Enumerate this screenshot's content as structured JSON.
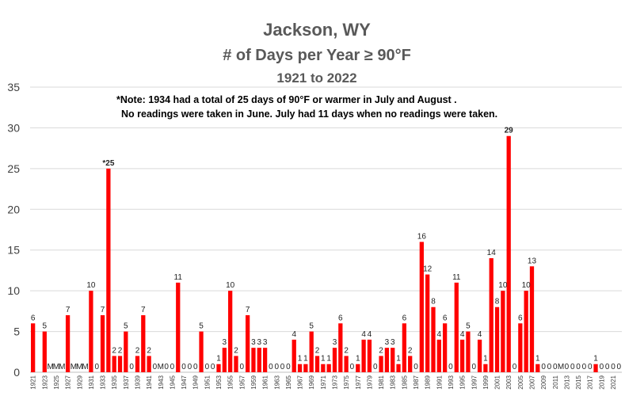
{
  "chart_data": {
    "type": "bar",
    "title": "Jackson, WY",
    "subtitle": "# of Days per Year ≥ 90°F",
    "period": "1921 to 2022",
    "note_line1": "*Note:  1934 had a total of 25 days of 90°F or warmer in July and August .",
    "note_line2": "No readings were taken in June. July had 11 days when no readings were taken.",
    "xlabel": "",
    "ylabel": "",
    "ylim": [
      0,
      35
    ],
    "yticks": [
      0,
      5,
      10,
      15,
      20,
      25,
      30,
      35
    ],
    "grid": true,
    "legend": "none",
    "bar_color": "#ff0000",
    "grid_color": "#d9d9d9",
    "first_year": 1921,
    "years": [
      "1921",
      "1922",
      "1923",
      "1924",
      "1925",
      "1926",
      "1927",
      "1928",
      "1929",
      "1930",
      "1931",
      "1932",
      "1933",
      "1934",
      "1935",
      "1936",
      "1937",
      "1938",
      "1939",
      "1940",
      "1941",
      "1942",
      "1943",
      "1944",
      "1945",
      "1946",
      "1947",
      "1948",
      "1949",
      "1950",
      "1951",
      "1952",
      "1953",
      "1954",
      "1955",
      "1956",
      "1957",
      "1958",
      "1959",
      "1960",
      "1961",
      "1962",
      "1963",
      "1964",
      "1965",
      "1966",
      "1967",
      "1968",
      "1969",
      "1970",
      "1971",
      "1972",
      "1973",
      "1974",
      "1975",
      "1976",
      "1977",
      "1978",
      "1979",
      "1980",
      "1981",
      "1982",
      "1983",
      "1984",
      "1985",
      "1986",
      "1987",
      "1988",
      "1989",
      "1990",
      "1991",
      "1992",
      "1993",
      "1994",
      "1995",
      "1996",
      "1997",
      "1998",
      "1999",
      "2000",
      "2001",
      "2002",
      "2003",
      "2004",
      "2005",
      "2006",
      "2007",
      "2008",
      "2009",
      "2010",
      "2011",
      "2012",
      "2013",
      "2014",
      "2015",
      "2016",
      "2017",
      "2018",
      "2019",
      "2020",
      "2021",
      "2022"
    ],
    "values": [
      6,
      0,
      5,
      0,
      0,
      0,
      7,
      0,
      0,
      0,
      10,
      0,
      7,
      25,
      2,
      2,
      5,
      0,
      2,
      7,
      2,
      0,
      0,
      0,
      0,
      11,
      0,
      0,
      0,
      5,
      0,
      0,
      1,
      3,
      10,
      2,
      0,
      7,
      3,
      3,
      3,
      0,
      0,
      0,
      0,
      4,
      1,
      1,
      5,
      2,
      1,
      1,
      3,
      6,
      2,
      0,
      1,
      4,
      4,
      0,
      2,
      3,
      3,
      1,
      6,
      2,
      0,
      16,
      12,
      8,
      4,
      6,
      0,
      11,
      4,
      5,
      0,
      4,
      1,
      14,
      8,
      10,
      29,
      0,
      6,
      10,
      13,
      1,
      0,
      0,
      0,
      0,
      0,
      0,
      0,
      0,
      0,
      1,
      0,
      0,
      0,
      0
    ],
    "labels": [
      "6",
      "",
      "5",
      "M",
      "M",
      "M",
      "7",
      "M",
      "M",
      "M",
      "10",
      "0",
      "7",
      "*25",
      "2",
      "2",
      "5",
      "0",
      "2",
      "7",
      "2",
      "0",
      "M",
      "0",
      "0",
      "11",
      "0",
      "0",
      "0",
      "5",
      "0",
      "0",
      "1",
      "3",
      "10",
      "2",
      "0",
      "7",
      "3",
      "3",
      "3",
      "0",
      "0",
      "0",
      "0",
      "4",
      "1",
      "1",
      "5",
      "2",
      "1",
      "1",
      "3",
      "6",
      "2",
      "0",
      "1",
      "4",
      "4",
      "0",
      "2",
      "3",
      "3",
      "1",
      "6",
      "2",
      "0",
      "16",
      "12",
      "8",
      "4",
      "6",
      "0",
      "11",
      "4",
      "5",
      "0",
      "4",
      "1",
      "14",
      "8",
      "10",
      "29",
      "0",
      "6",
      "10",
      "13",
      "1",
      "0",
      "0",
      "0",
      "M",
      "0",
      "0",
      "0",
      "0",
      "0",
      "1",
      "0",
      "0",
      "0",
      "0"
    ],
    "xtick_labels": [
      "1921",
      "1923",
      "1925",
      "1927",
      "1929",
      "1931",
      "1933",
      "1935",
      "1937",
      "1939",
      "1941",
      "1943",
      "1945",
      "1947",
      "1949",
      "1951",
      "1953",
      "1955",
      "1957",
      "1959",
      "1961",
      "1963",
      "1965",
      "1967",
      "1969",
      "1971",
      "1973",
      "1975",
      "1977",
      "1979",
      "1981",
      "1983",
      "1985",
      "1987",
      "1989",
      "1991",
      "1993",
      "1995",
      "1997",
      "1999",
      "2001",
      "2003",
      "2005",
      "2007",
      "2009",
      "2011",
      "2013",
      "2015",
      "2017",
      "2019",
      "2021"
    ]
  }
}
